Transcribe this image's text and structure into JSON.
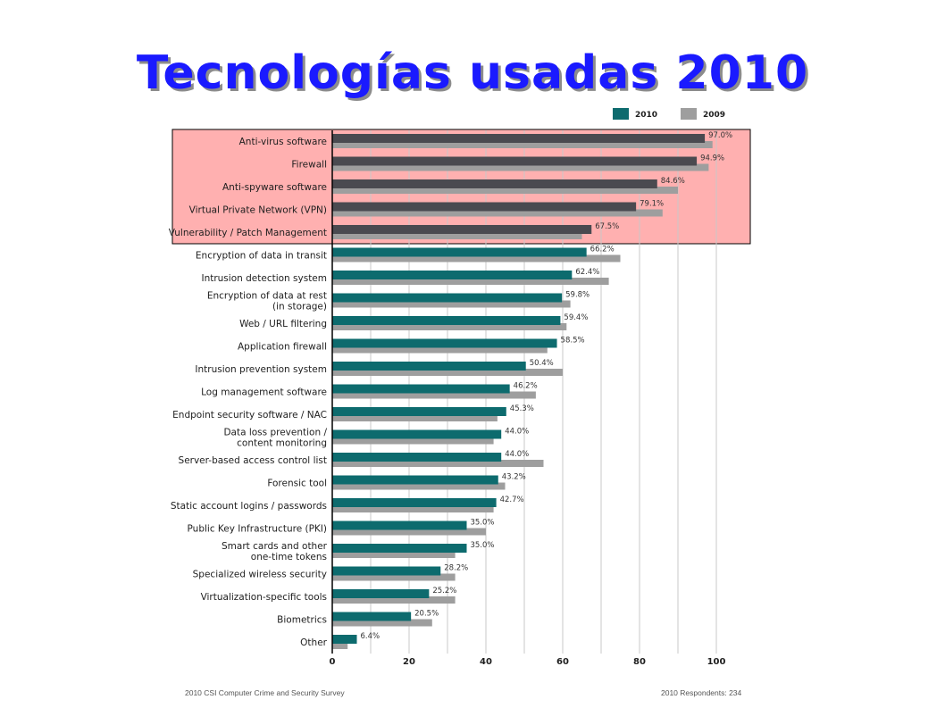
{
  "title": "Tecnologías usadas 2010",
  "footer": {
    "source": "2010 CSI Computer Crime and Security Survey",
    "respondents": "2010 Respondents: 234"
  },
  "colors": {
    "series_2010": "#0d6b6e",
    "series_2009": "#9e9e9e",
    "highlight_2010": "#4a4a50",
    "highlight_fill": "#ffb0b0",
    "title": "#1a1aff"
  },
  "chart_data": {
    "type": "bar",
    "orientation": "horizontal",
    "categories": [
      [
        "Anti-virus software"
      ],
      [
        "Firewall"
      ],
      [
        "Anti-spyware software"
      ],
      [
        "Virtual Private Network (VPN)"
      ],
      [
        "Vulnerability / Patch Management"
      ],
      [
        "Encryption of data in transit"
      ],
      [
        "Intrusion detection system"
      ],
      [
        "Encryption of data at rest",
        "(in storage)"
      ],
      [
        "Web / URL filtering"
      ],
      [
        "Application firewall"
      ],
      [
        "Intrusion prevention system"
      ],
      [
        "Log management software"
      ],
      [
        "Endpoint security software / NAC"
      ],
      [
        "Data loss prevention /",
        "content monitoring"
      ],
      [
        "Server-based access control list"
      ],
      [
        "Forensic tool"
      ],
      [
        "Static account logins / passwords"
      ],
      [
        "Public Key Infrastructure (PKI)"
      ],
      [
        "Smart cards and other",
        "one-time tokens"
      ],
      [
        "Specialized wireless security"
      ],
      [
        "Virtualization-specific tools"
      ],
      [
        "Biometrics"
      ],
      [
        "Other"
      ]
    ],
    "series": [
      {
        "name": "2010",
        "values": [
          97.0,
          94.9,
          84.6,
          79.1,
          67.5,
          66.2,
          62.4,
          59.8,
          59.4,
          58.5,
          50.4,
          46.2,
          45.3,
          44.0,
          44.0,
          43.2,
          42.7,
          35.0,
          35.0,
          28.2,
          25.2,
          20.5,
          6.4
        ],
        "labels": [
          "97.0%",
          "94.9%",
          "84.6%",
          "79.1%",
          "67.5%",
          "66.2%",
          "62.4%",
          "59.8%",
          "59.4%",
          "58.5%",
          "50.4%",
          "46.2%",
          "45.3%",
          "44.0%",
          "44.0%",
          "43.2%",
          "42.7%",
          "35.0%",
          "35.0%",
          "28.2%",
          "25.2%",
          "20.5%",
          "6.4%"
        ]
      },
      {
        "name": "2009",
        "values": [
          99,
          98,
          90,
          86,
          65,
          75,
          72,
          62,
          61,
          56,
          60,
          53,
          43,
          42,
          55,
          45,
          42,
          40,
          32,
          32,
          32,
          26,
          4
        ]
      }
    ],
    "highlighted_count": 5,
    "xlim": [
      0,
      100
    ],
    "xticks": [
      0,
      20,
      40,
      60,
      80,
      100
    ],
    "grid": "vertical",
    "legend_position": "top-right"
  }
}
